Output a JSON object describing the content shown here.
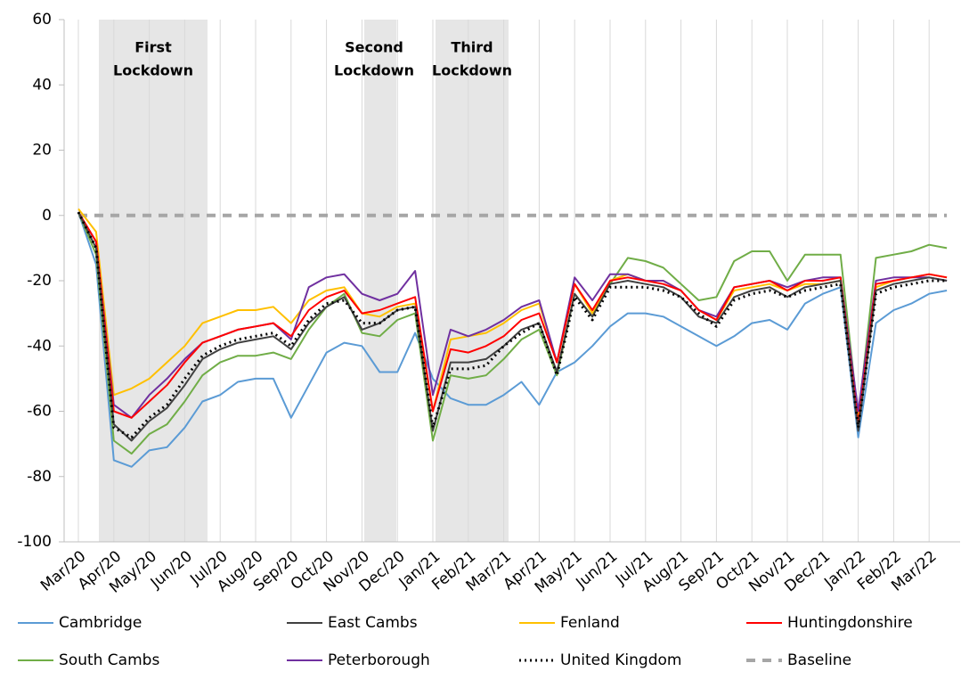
{
  "chart_data": {
    "type": "line",
    "categories": [
      "Mar/20",
      null,
      "Apr/20",
      null,
      "May/20",
      null,
      "Jun/20",
      null,
      "Jul/20",
      null,
      "Aug/20",
      null,
      "Sep/20",
      null,
      "Oct/20",
      null,
      "Nov/20",
      null,
      "Dec/20",
      null,
      "Jan/21",
      null,
      "Feb/21",
      null,
      "Mar/21",
      null,
      "Apr/21",
      null,
      "May/21",
      null,
      "Jun/21",
      null,
      "Jul/21",
      null,
      "Aug/21",
      null,
      "Sep/21",
      null,
      "Oct/21",
      null,
      "Nov/21",
      null,
      "Dec/21",
      null,
      "Jan/22",
      null,
      "Feb/22",
      null,
      "Mar/22",
      null
    ],
    "ylim": [
      -100,
      60
    ],
    "yticks": [
      -100,
      -80,
      -60,
      -40,
      -20,
      0,
      20,
      40,
      60
    ],
    "xgrid": true,
    "legend": "bottom",
    "annotations": [
      {
        "lines": [
          "First",
          "Lockdown"
        ]
      },
      {
        "lines": [
          "Second",
          "Lockdown"
        ]
      },
      {
        "lines": [
          "Third",
          "Lockdown"
        ]
      }
    ],
    "series": [
      {
        "name": "Cambridge",
        "color": "#5b9bd5",
        "style": "solid",
        "values": [
          1,
          -15,
          -75,
          -77,
          -72,
          -71,
          -65,
          -57,
          -55,
          -51,
          -50,
          -50,
          -62,
          -52,
          -42,
          -39,
          -40,
          -48,
          -48,
          -36,
          -50,
          -56,
          -58,
          -58,
          -55,
          -51,
          -58,
          -48,
          -45,
          -40,
          -34,
          -30,
          -30,
          -31,
          -34,
          -37,
          -40,
          -37,
          -33,
          -32,
          -35,
          -27,
          -24,
          -22,
          -68,
          -33,
          -29,
          -27,
          -24,
          -23
        ]
      },
      {
        "name": "East Cambs",
        "color": "#404040",
        "style": "solid",
        "values": [
          1,
          -10,
          -64,
          -69,
          -63,
          -59,
          -52,
          -44,
          -41,
          -39,
          -38,
          -37,
          -41,
          -33,
          -28,
          -25,
          -35,
          -33,
          -29,
          -28,
          -66,
          -45,
          -45,
          -44,
          -40,
          -35,
          -33,
          -48,
          -24,
          -31,
          -21,
          -20,
          -21,
          -22,
          -25,
          -31,
          -33,
          -25,
          -23,
          -22,
          -25,
          -22,
          -21,
          -20,
          -66,
          -23,
          -21,
          -20,
          -19,
          -20
        ]
      },
      {
        "name": "Fenland",
        "color": "#ffc000",
        "style": "solid",
        "values": [
          2,
          -5,
          -55,
          -53,
          -50,
          -45,
          -40,
          -33,
          -31,
          -29,
          -29,
          -28,
          -33,
          -26,
          -23,
          -22,
          -30,
          -31,
          -28,
          -27,
          -60,
          -38,
          -37,
          -36,
          -33,
          -29,
          -27,
          -45,
          -21,
          -30,
          -20,
          -18,
          -20,
          -20,
          -23,
          -29,
          -32,
          -23,
          -22,
          -21,
          -23,
          -21,
          -21,
          -20,
          -62,
          -22,
          -20,
          -19,
          -18,
          -19
        ]
      },
      {
        "name": "Huntingdonshire",
        "color": "#ff0000",
        "style": "solid",
        "values": [
          1,
          -8,
          -60,
          -62,
          -57,
          -52,
          -45,
          -39,
          -37,
          -35,
          -34,
          -33,
          -37,
          -29,
          -25,
          -23,
          -30,
          -29,
          -27,
          -25,
          -60,
          -41,
          -42,
          -40,
          -37,
          -32,
          -30,
          -45,
          -21,
          -29,
          -20,
          -19,
          -20,
          -21,
          -23,
          -29,
          -32,
          -22,
          -21,
          -20,
          -23,
          -20,
          -20,
          -19,
          -64,
          -21,
          -20,
          -19,
          -18,
          -19
        ]
      },
      {
        "name": "South Cambs",
        "color": "#70ad47",
        "style": "solid",
        "values": [
          1,
          -12,
          -69,
          -73,
          -67,
          -64,
          -57,
          -49,
          -45,
          -43,
          -43,
          -42,
          -44,
          -35,
          -28,
          -24,
          -36,
          -37,
          -32,
          -30,
          -69,
          -49,
          -50,
          -49,
          -44,
          -38,
          -35,
          -49,
          -24,
          -31,
          -21,
          -13,
          -14,
          -16,
          -21,
          -26,
          -25,
          -14,
          -11,
          -11,
          -20,
          -12,
          -12,
          -12,
          -62,
          -13,
          -12,
          -11,
          -9,
          -10
        ]
      },
      {
        "name": "Peterborough",
        "color": "#7030a0",
        "style": "solid",
        "values": [
          1,
          -8,
          -58,
          -62,
          -55,
          -50,
          -44,
          -39,
          -37,
          -35,
          -34,
          -33,
          -38,
          -22,
          -19,
          -18,
          -24,
          -26,
          -24,
          -17,
          -55,
          -35,
          -37,
          -35,
          -32,
          -28,
          -26,
          -45,
          -19,
          -26,
          -18,
          -18,
          -20,
          -20,
          -23,
          -29,
          -31,
          -22,
          -21,
          -20,
          -22,
          -20,
          -19,
          -19,
          -60,
          -20,
          -19,
          -19,
          -19,
          -20
        ]
      },
      {
        "name": "United Kingdom",
        "color": "#000000",
        "style": "dotted",
        "values": [
          1,
          -10,
          -65,
          -68,
          -62,
          -58,
          -50,
          -43,
          -40,
          -38,
          -37,
          -36,
          -40,
          -32,
          -27,
          -26,
          -33,
          -33,
          -29,
          -28,
          -65,
          -47,
          -47,
          -46,
          -40,
          -36,
          -33,
          -49,
          -25,
          -32,
          -22,
          -22,
          -22,
          -23,
          -25,
          -30,
          -34,
          -26,
          -24,
          -23,
          -25,
          -23,
          -22,
          -21,
          -65,
          -24,
          -22,
          -21,
          -20,
          -20
        ]
      },
      {
        "name": "Baseline",
        "color": "#a6a6a6",
        "style": "dashed",
        "values": [
          0,
          0,
          0,
          0,
          0,
          0,
          0,
          0,
          0,
          0,
          0,
          0,
          0,
          0,
          0,
          0,
          0,
          0,
          0,
          0,
          0,
          0,
          0,
          0,
          0,
          0,
          0,
          0,
          0,
          0,
          0,
          0,
          0,
          0,
          0,
          0,
          0,
          0,
          0,
          0,
          0,
          0,
          0,
          0,
          0,
          0,
          0,
          0,
          0,
          0
        ]
      }
    ]
  }
}
